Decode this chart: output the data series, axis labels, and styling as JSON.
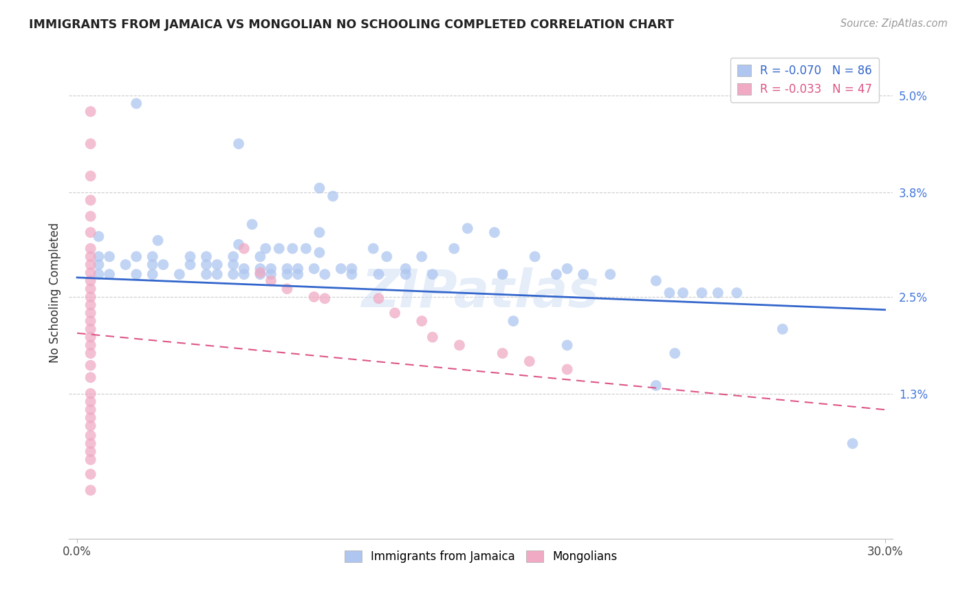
{
  "title": "IMMIGRANTS FROM JAMAICA VS MONGOLIAN NO SCHOOLING COMPLETED CORRELATION CHART",
  "source": "Source: ZipAtlas.com",
  "ylabel": "No Schooling Completed",
  "ytick_labels": [
    "5.0%",
    "3.8%",
    "2.5%",
    "1.3%"
  ],
  "ytick_values": [
    0.05,
    0.038,
    0.025,
    0.013
  ],
  "xlim": [
    0.0,
    0.3
  ],
  "ylim": [
    -0.005,
    0.056
  ],
  "legend_labels_bottom": [
    "Immigrants from Jamaica",
    "Mongolians"
  ],
  "jamaica_color": "#aec6f0",
  "mongolian_color": "#f0aac4",
  "watermark": "ZIPatlas",
  "jamaica_trend": [
    0.0,
    0.0274,
    0.3,
    0.0234
  ],
  "mongolian_trend": [
    0.0,
    0.0205,
    0.3,
    0.011
  ],
  "jamaica_points": [
    [
      0.022,
      0.049
    ],
    [
      0.06,
      0.044
    ],
    [
      0.09,
      0.0385
    ],
    [
      0.095,
      0.0375
    ],
    [
      0.065,
      0.034
    ],
    [
      0.09,
      0.033
    ],
    [
      0.145,
      0.0335
    ],
    [
      0.155,
      0.033
    ],
    [
      0.008,
      0.0325
    ],
    [
      0.03,
      0.032
    ],
    [
      0.06,
      0.0315
    ],
    [
      0.07,
      0.031
    ],
    [
      0.075,
      0.031
    ],
    [
      0.08,
      0.031
    ],
    [
      0.085,
      0.031
    ],
    [
      0.09,
      0.0305
    ],
    [
      0.11,
      0.031
    ],
    [
      0.14,
      0.031
    ],
    [
      0.008,
      0.03
    ],
    [
      0.012,
      0.03
    ],
    [
      0.022,
      0.03
    ],
    [
      0.028,
      0.03
    ],
    [
      0.042,
      0.03
    ],
    [
      0.048,
      0.03
    ],
    [
      0.058,
      0.03
    ],
    [
      0.068,
      0.03
    ],
    [
      0.115,
      0.03
    ],
    [
      0.128,
      0.03
    ],
    [
      0.17,
      0.03
    ],
    [
      0.008,
      0.029
    ],
    [
      0.018,
      0.029
    ],
    [
      0.028,
      0.029
    ],
    [
      0.032,
      0.029
    ],
    [
      0.042,
      0.029
    ],
    [
      0.048,
      0.029
    ],
    [
      0.052,
      0.029
    ],
    [
      0.058,
      0.029
    ],
    [
      0.062,
      0.0285
    ],
    [
      0.068,
      0.0285
    ],
    [
      0.072,
      0.0285
    ],
    [
      0.078,
      0.0285
    ],
    [
      0.082,
      0.0285
    ],
    [
      0.088,
      0.0285
    ],
    [
      0.098,
      0.0285
    ],
    [
      0.102,
      0.0285
    ],
    [
      0.122,
      0.0285
    ],
    [
      0.182,
      0.0285
    ],
    [
      0.008,
      0.0278
    ],
    [
      0.012,
      0.0278
    ],
    [
      0.022,
      0.0278
    ],
    [
      0.028,
      0.0278
    ],
    [
      0.038,
      0.0278
    ],
    [
      0.048,
      0.0278
    ],
    [
      0.052,
      0.0278
    ],
    [
      0.058,
      0.0278
    ],
    [
      0.062,
      0.0278
    ],
    [
      0.068,
      0.0278
    ],
    [
      0.072,
      0.0278
    ],
    [
      0.078,
      0.0278
    ],
    [
      0.082,
      0.0278
    ],
    [
      0.092,
      0.0278
    ],
    [
      0.102,
      0.0278
    ],
    [
      0.112,
      0.0278
    ],
    [
      0.122,
      0.0278
    ],
    [
      0.132,
      0.0278
    ],
    [
      0.158,
      0.0278
    ],
    [
      0.178,
      0.0278
    ],
    [
      0.188,
      0.0278
    ],
    [
      0.198,
      0.0278
    ],
    [
      0.215,
      0.027
    ],
    [
      0.22,
      0.0255
    ],
    [
      0.225,
      0.0255
    ],
    [
      0.232,
      0.0255
    ],
    [
      0.238,
      0.0255
    ],
    [
      0.245,
      0.0255
    ],
    [
      0.162,
      0.022
    ],
    [
      0.262,
      0.021
    ],
    [
      0.182,
      0.019
    ],
    [
      0.222,
      0.018
    ],
    [
      0.215,
      0.014
    ],
    [
      0.288,
      0.0068
    ]
  ],
  "mongolian_points": [
    [
      0.005,
      0.048
    ],
    [
      0.005,
      0.044
    ],
    [
      0.005,
      0.04
    ],
    [
      0.005,
      0.037
    ],
    [
      0.005,
      0.035
    ],
    [
      0.005,
      0.033
    ],
    [
      0.005,
      0.031
    ],
    [
      0.005,
      0.03
    ],
    [
      0.005,
      0.029
    ],
    [
      0.005,
      0.028
    ],
    [
      0.005,
      0.027
    ],
    [
      0.005,
      0.026
    ],
    [
      0.005,
      0.025
    ],
    [
      0.005,
      0.024
    ],
    [
      0.005,
      0.023
    ],
    [
      0.005,
      0.022
    ],
    [
      0.005,
      0.021
    ],
    [
      0.005,
      0.02
    ],
    [
      0.005,
      0.019
    ],
    [
      0.005,
      0.018
    ],
    [
      0.005,
      0.0165
    ],
    [
      0.005,
      0.015
    ],
    [
      0.005,
      0.013
    ],
    [
      0.005,
      0.012
    ],
    [
      0.005,
      0.011
    ],
    [
      0.005,
      0.01
    ],
    [
      0.005,
      0.009
    ],
    [
      0.005,
      0.0078
    ],
    [
      0.005,
      0.0068
    ],
    [
      0.005,
      0.0058
    ],
    [
      0.005,
      0.0048
    ],
    [
      0.005,
      0.003
    ],
    [
      0.005,
      0.001
    ],
    [
      0.062,
      0.031
    ],
    [
      0.068,
      0.028
    ],
    [
      0.072,
      0.027
    ],
    [
      0.078,
      0.026
    ],
    [
      0.088,
      0.025
    ],
    [
      0.092,
      0.0248
    ],
    [
      0.112,
      0.0248
    ],
    [
      0.118,
      0.023
    ],
    [
      0.128,
      0.022
    ],
    [
      0.132,
      0.02
    ],
    [
      0.142,
      0.019
    ],
    [
      0.158,
      0.018
    ],
    [
      0.168,
      0.017
    ],
    [
      0.182,
      0.016
    ]
  ]
}
